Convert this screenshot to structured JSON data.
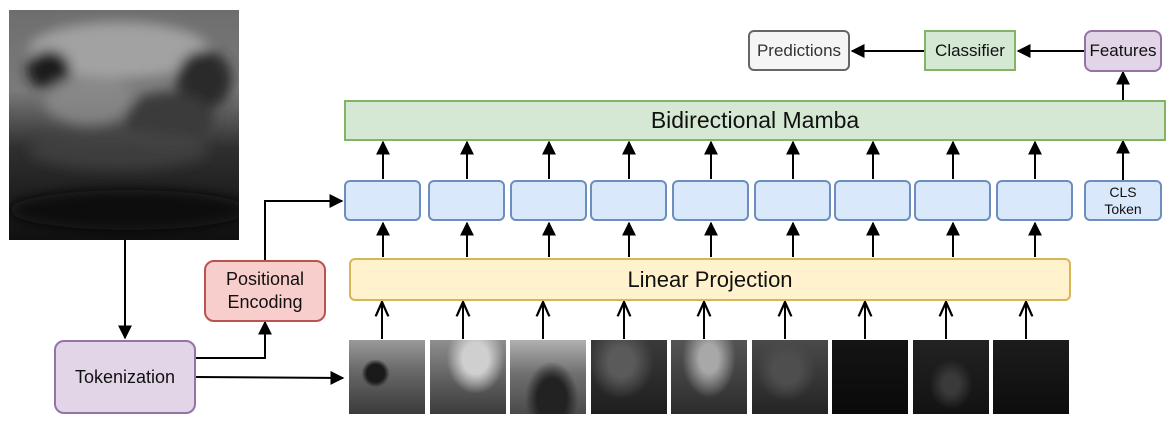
{
  "labels": {
    "predictions": "Predictions",
    "classifier": "Classifier",
    "features": "Features",
    "mamba": "Bidirectional Mamba",
    "cls_line1": "CLS",
    "cls_line2": "Token",
    "linear": "Linear Projection",
    "pos_line1": "Positional",
    "pos_line2": "Encoding",
    "tokenization": "Tokenization"
  },
  "colors": {
    "token_fill": "#dae8fc",
    "mamba_fill": "#d5e8d4",
    "linear_fill": "#fff2cc",
    "positional_fill": "#f8cecc",
    "purple_fill": "#e1d5e7",
    "predictions_fill": "#f5f5f5"
  },
  "image_patch_count": 9
}
